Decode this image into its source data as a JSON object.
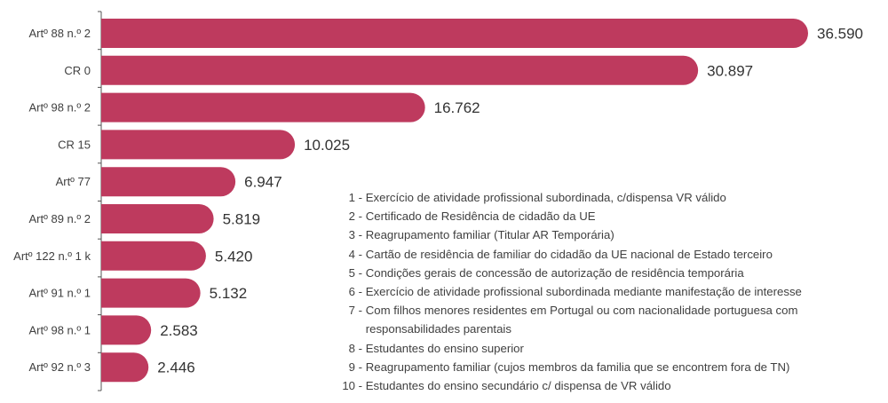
{
  "chart_data": {
    "type": "bar",
    "orientation": "horizontal",
    "title": "",
    "xlabel": "",
    "ylabel": "",
    "xlim": [
      0,
      36590
    ],
    "grid": false,
    "color": "#BE3A5E",
    "categories": [
      "Artº 88 n.º 2",
      "CR 0",
      "Artº 98 n.º 2",
      "CR 15",
      "Artº 77",
      "Artº 89 n.º 2",
      "Artº 122 n.º 1 k",
      "Artº 91 n.º 1",
      "Artº 98 n.º 1",
      "Artº 92 n.º 3"
    ],
    "values": [
      36590,
      30897,
      16762,
      10025,
      6947,
      5819,
      5420,
      5132,
      2583,
      2446
    ],
    "value_labels": [
      "36.590",
      "30.897",
      "16.762",
      "10.025",
      "6.947",
      "5.819",
      "5.420",
      "5.132",
      "2.583",
      "2.446"
    ],
    "legend": {
      "placement": "bottom-right",
      "items": [
        {
          "num": "1",
          "text": "Exercício de atividade profissional subordinada, c/dispensa VR válido"
        },
        {
          "num": "2",
          "text": "Certificado de Residência de cidadão da UE"
        },
        {
          "num": "3",
          "text": "Reagrupamento familiar (Titular AR Temporária)"
        },
        {
          "num": "4",
          "text": "Cartão de residência de familiar do cidadão da UE nacional de Estado terceiro"
        },
        {
          "num": "5",
          "text": "Condições gerais de concessão de autorização de residência temporária"
        },
        {
          "num": "6",
          "text": "Exercício de atividade profissional subordinada mediante manifestação de interesse"
        },
        {
          "num": "7",
          "text": "Com filhos menores residentes em Portugal ou com nacionalidade portuguesa com responsabilidades parentais"
        },
        {
          "num": "8",
          "text": "Estudantes do ensino superior"
        },
        {
          "num": "9",
          "text": "Reagrupamento familiar (cujos membros da familia que se encontrem fora de TN)"
        },
        {
          "num": "10",
          "text": "Estudantes do ensino secundário c/ dispensa de VR válido"
        }
      ]
    }
  }
}
